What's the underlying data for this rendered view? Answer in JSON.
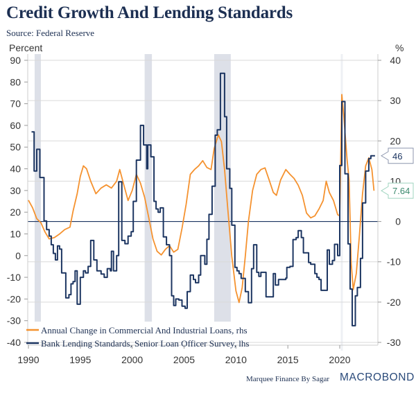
{
  "header": {
    "title": "Credit Growth And Lending Standards",
    "subtitle": "Source: Federal Reserve"
  },
  "footer": {
    "credit": "Marquee Finance By Sagar",
    "logo": "MACROBOND"
  },
  "colors": {
    "orange_series": "#f5922f",
    "navy_series": "#1c3561",
    "recession_shade": "#dde0e8",
    "gridline": "#d9d9d9",
    "axis_text": "#333333",
    "last_value_navy_border": "#8c96ad",
    "last_value_green": "#3b8a6e",
    "last_value_green_border": "#9fd4bf"
  },
  "chart_data": {
    "type": "line",
    "title": "Credit Growth And Lending Standards",
    "subtitle": "Source: Federal Reserve",
    "xlabel": "",
    "ylabel_left": "Percent",
    "ylabel_right": "%",
    "x_range": [
      1989.9,
      2024.2
    ],
    "ylim_left": [
      -40,
      90
    ],
    "ylim_right": [
      -30,
      40
    ],
    "x_ticks": [
      1990,
      1995,
      2000,
      2005,
      2010,
      2015,
      2020
    ],
    "x_tick_labels": [
      "1990",
      "1995",
      "2000",
      "2005",
      "2010",
      "2015",
      "2020"
    ],
    "y_ticks_left": [
      90,
      80,
      70,
      60,
      50,
      40,
      30,
      20,
      10,
      0,
      -10,
      -20,
      -30,
      -40
    ],
    "y_tick_labels_left": [
      "90",
      "80",
      "70",
      "60",
      "50",
      "40",
      "30",
      "20",
      "10",
      "0",
      "-10",
      "-20",
      "-30",
      "-40"
    ],
    "y_ticks_right": [
      40,
      30,
      20,
      10,
      0,
      -10,
      -20,
      -30
    ],
    "y_tick_labels_right": [
      "40",
      "30",
      "20",
      "10",
      "0",
      "-10",
      "-20",
      "-30"
    ],
    "grid": true,
    "zero_line_axis": "right",
    "legend_position": "bottom-left",
    "recessions": [
      {
        "start": 1990.6,
        "end": 1991.2
      },
      {
        "start": 2001.2,
        "end": 2001.9
      },
      {
        "start": 2007.9,
        "end": 2009.5
      },
      {
        "start": 2020.1,
        "end": 2020.3
      }
    ],
    "series": [
      {
        "name": "Annual Change in Commercial And Industrial Loans, rhs",
        "axis": "right",
        "style": "line",
        "color": "#f5922f",
        "last_value_label": "7.64",
        "x": [
          1990.0,
          1990.4,
          1990.8,
          1991.2,
          1991.6,
          1992.0,
          1992.5,
          1993.0,
          1993.5,
          1994.0,
          1994.3,
          1994.7,
          1995.0,
          1995.3,
          1995.6,
          1996.0,
          1996.5,
          1997.0,
          1997.5,
          1998.0,
          1998.5,
          1998.8,
          1999.2,
          1999.6,
          2000.0,
          2000.4,
          2000.8,
          2001.2,
          2001.6,
          2002.0,
          2002.4,
          2002.8,
          2003.2,
          2003.6,
          2004.0,
          2004.4,
          2004.8,
          2005.2,
          2005.6,
          2006.0,
          2006.4,
          2006.8,
          2007.2,
          2007.6,
          2007.9,
          2008.3,
          2008.6,
          2008.9,
          2009.2,
          2009.6,
          2010.0,
          2010.3,
          2010.6,
          2010.9,
          2011.2,
          2011.6,
          2012.0,
          2012.4,
          2012.8,
          2013.2,
          2013.6,
          2013.9,
          2014.3,
          2014.8,
          2015.2,
          2015.6,
          2016.0,
          2016.4,
          2016.8,
          2017.2,
          2017.6,
          2018.0,
          2018.4,
          2018.7,
          2019.0,
          2019.4,
          2019.8,
          2020.0,
          2020.2,
          2020.4,
          2020.7,
          2020.9,
          2021.1,
          2021.3,
          2021.6,
          2021.9,
          2022.2,
          2022.5,
          2022.8,
          2023.1,
          2023.3
        ],
        "values": [
          5.3,
          3.4,
          0.7,
          -0.3,
          -2.6,
          -4.3,
          -4.0,
          -3.1,
          -2.0,
          -1.4,
          2.6,
          6.9,
          11.2,
          13.8,
          13.1,
          10.0,
          6.9,
          8.3,
          9.1,
          8.3,
          10.0,
          12.9,
          9.0,
          5.2,
          7.7,
          11.7,
          9.5,
          6.0,
          0.9,
          -4.3,
          -7.4,
          -8.3,
          -6.9,
          -6.0,
          -7.6,
          -6.9,
          -1.7,
          4.3,
          11.7,
          12.9,
          13.8,
          15.1,
          13.4,
          12.9,
          18.1,
          21.5,
          19.8,
          12.9,
          3.4,
          -8.6,
          -17.2,
          -20.1,
          -16.4,
          -8.6,
          0.0,
          7.7,
          11.7,
          12.9,
          13.3,
          10.3,
          7.2,
          6.5,
          10.3,
          12.9,
          11.7,
          10.7,
          9.0,
          6.5,
          2.1,
          0.9,
          1.4,
          3.1,
          5.2,
          10.0,
          7.2,
          5.2,
          1.7,
          1.4,
          31.5,
          25.8,
          15.5,
          10.3,
          -10.3,
          -16.9,
          -12.9,
          -3.4,
          6.9,
          13.8,
          15.8,
          12.9,
          7.64
        ]
      },
      {
        "name": "Bank Lending Standards, Senior Loan Officer Survey, lhs",
        "axis": "left",
        "style": "step",
        "color": "#1c3561",
        "last_value_label": "46",
        "x": [
          1990.3,
          1990.55,
          1990.8,
          1991.1,
          1991.5,
          1991.75,
          1992.0,
          1992.2,
          1992.4,
          1992.6,
          1992.8,
          1993.0,
          1993.2,
          1993.6,
          1993.9,
          1994.1,
          1994.3,
          1994.5,
          1994.7,
          1995.0,
          1995.3,
          1995.5,
          1995.75,
          1996.0,
          1996.3,
          1996.6,
          1997.0,
          1997.3,
          1997.6,
          1997.9,
          1998.0,
          1998.2,
          1998.5,
          1998.7,
          1999.0,
          1999.3,
          1999.6,
          1999.9,
          2000.1,
          2000.4,
          2000.8,
          2001.1,
          2001.4,
          2001.5,
          2001.8,
          2002.1,
          2002.3,
          2002.5,
          2002.7,
          2003.0,
          2003.3,
          2003.6,
          2003.8,
          2004.0,
          2004.2,
          2004.5,
          2004.8,
          2005.1,
          2005.3,
          2005.6,
          2005.9,
          2006.1,
          2006.4,
          2006.6,
          2007.0,
          2007.2,
          2007.4,
          2007.7,
          2008.0,
          2008.2,
          2008.5,
          2008.9,
          2009.1,
          2009.4,
          2009.6,
          2009.9,
          2010.1,
          2010.3,
          2010.5,
          2010.9,
          2011.2,
          2011.5,
          2011.7,
          2012.0,
          2012.2,
          2012.4,
          2012.9,
          2013.2,
          2013.6,
          2013.8,
          2014.1,
          2014.8,
          2014.9,
          2015.2,
          2015.5,
          2015.8,
          2016.0,
          2016.3,
          2016.5,
          2017.0,
          2017.2,
          2017.6,
          2017.8,
          2018.0,
          2018.2,
          2018.8,
          2019.0,
          2019.3,
          2019.5,
          2019.8,
          2020.0,
          2020.2,
          2020.5,
          2020.8,
          2021.0,
          2021.2,
          2021.5,
          2021.7,
          2022.0,
          2022.2,
          2022.5,
          2022.8,
          2023.0,
          2023.4
        ],
        "values": [
          57,
          39,
          49,
          36,
          16,
          12,
          9,
          5,
          1,
          -2,
          4.5,
          3,
          -8,
          -19.5,
          -18,
          -13,
          -12,
          -7,
          -22.4,
          -10,
          -7,
          -8,
          -5,
          7,
          -2,
          -7,
          -8.5,
          -10,
          -6,
          -7,
          2,
          -7,
          0,
          34,
          7,
          5.5,
          9,
          11,
          25,
          44,
          60,
          51,
          40,
          51,
          45.5,
          25,
          21.5,
          20,
          22,
          8.6,
          5,
          0,
          -18.5,
          -23,
          -20,
          -20.5,
          -23.3,
          -24.3,
          -16.6,
          -9,
          -11,
          -12.5,
          -9,
          0,
          -4,
          7.5,
          19,
          32,
          55.5,
          58,
          84,
          64,
          40,
          31,
          14,
          -5.4,
          -7,
          -8.3,
          -10.5,
          -16.6,
          -21.7,
          -6,
          5,
          -7.7,
          -9.6,
          -7.7,
          -19,
          -19,
          -8.3,
          -13.6,
          -11,
          -10.4,
          -5.4,
          -5,
          7.4,
          8.3,
          11.5,
          8.3,
          1.3,
          -3.2,
          -4,
          -8.3,
          -10,
          -11,
          -16,
          2.6,
          -4,
          -2.2,
          5.2,
          0,
          41.5,
          71,
          37.7,
          5.4,
          -15.4,
          -32.3,
          -18.5,
          -14.7,
          -1.3,
          24.3,
          39,
          44.7,
          46,
          46
        ]
      }
    ]
  }
}
